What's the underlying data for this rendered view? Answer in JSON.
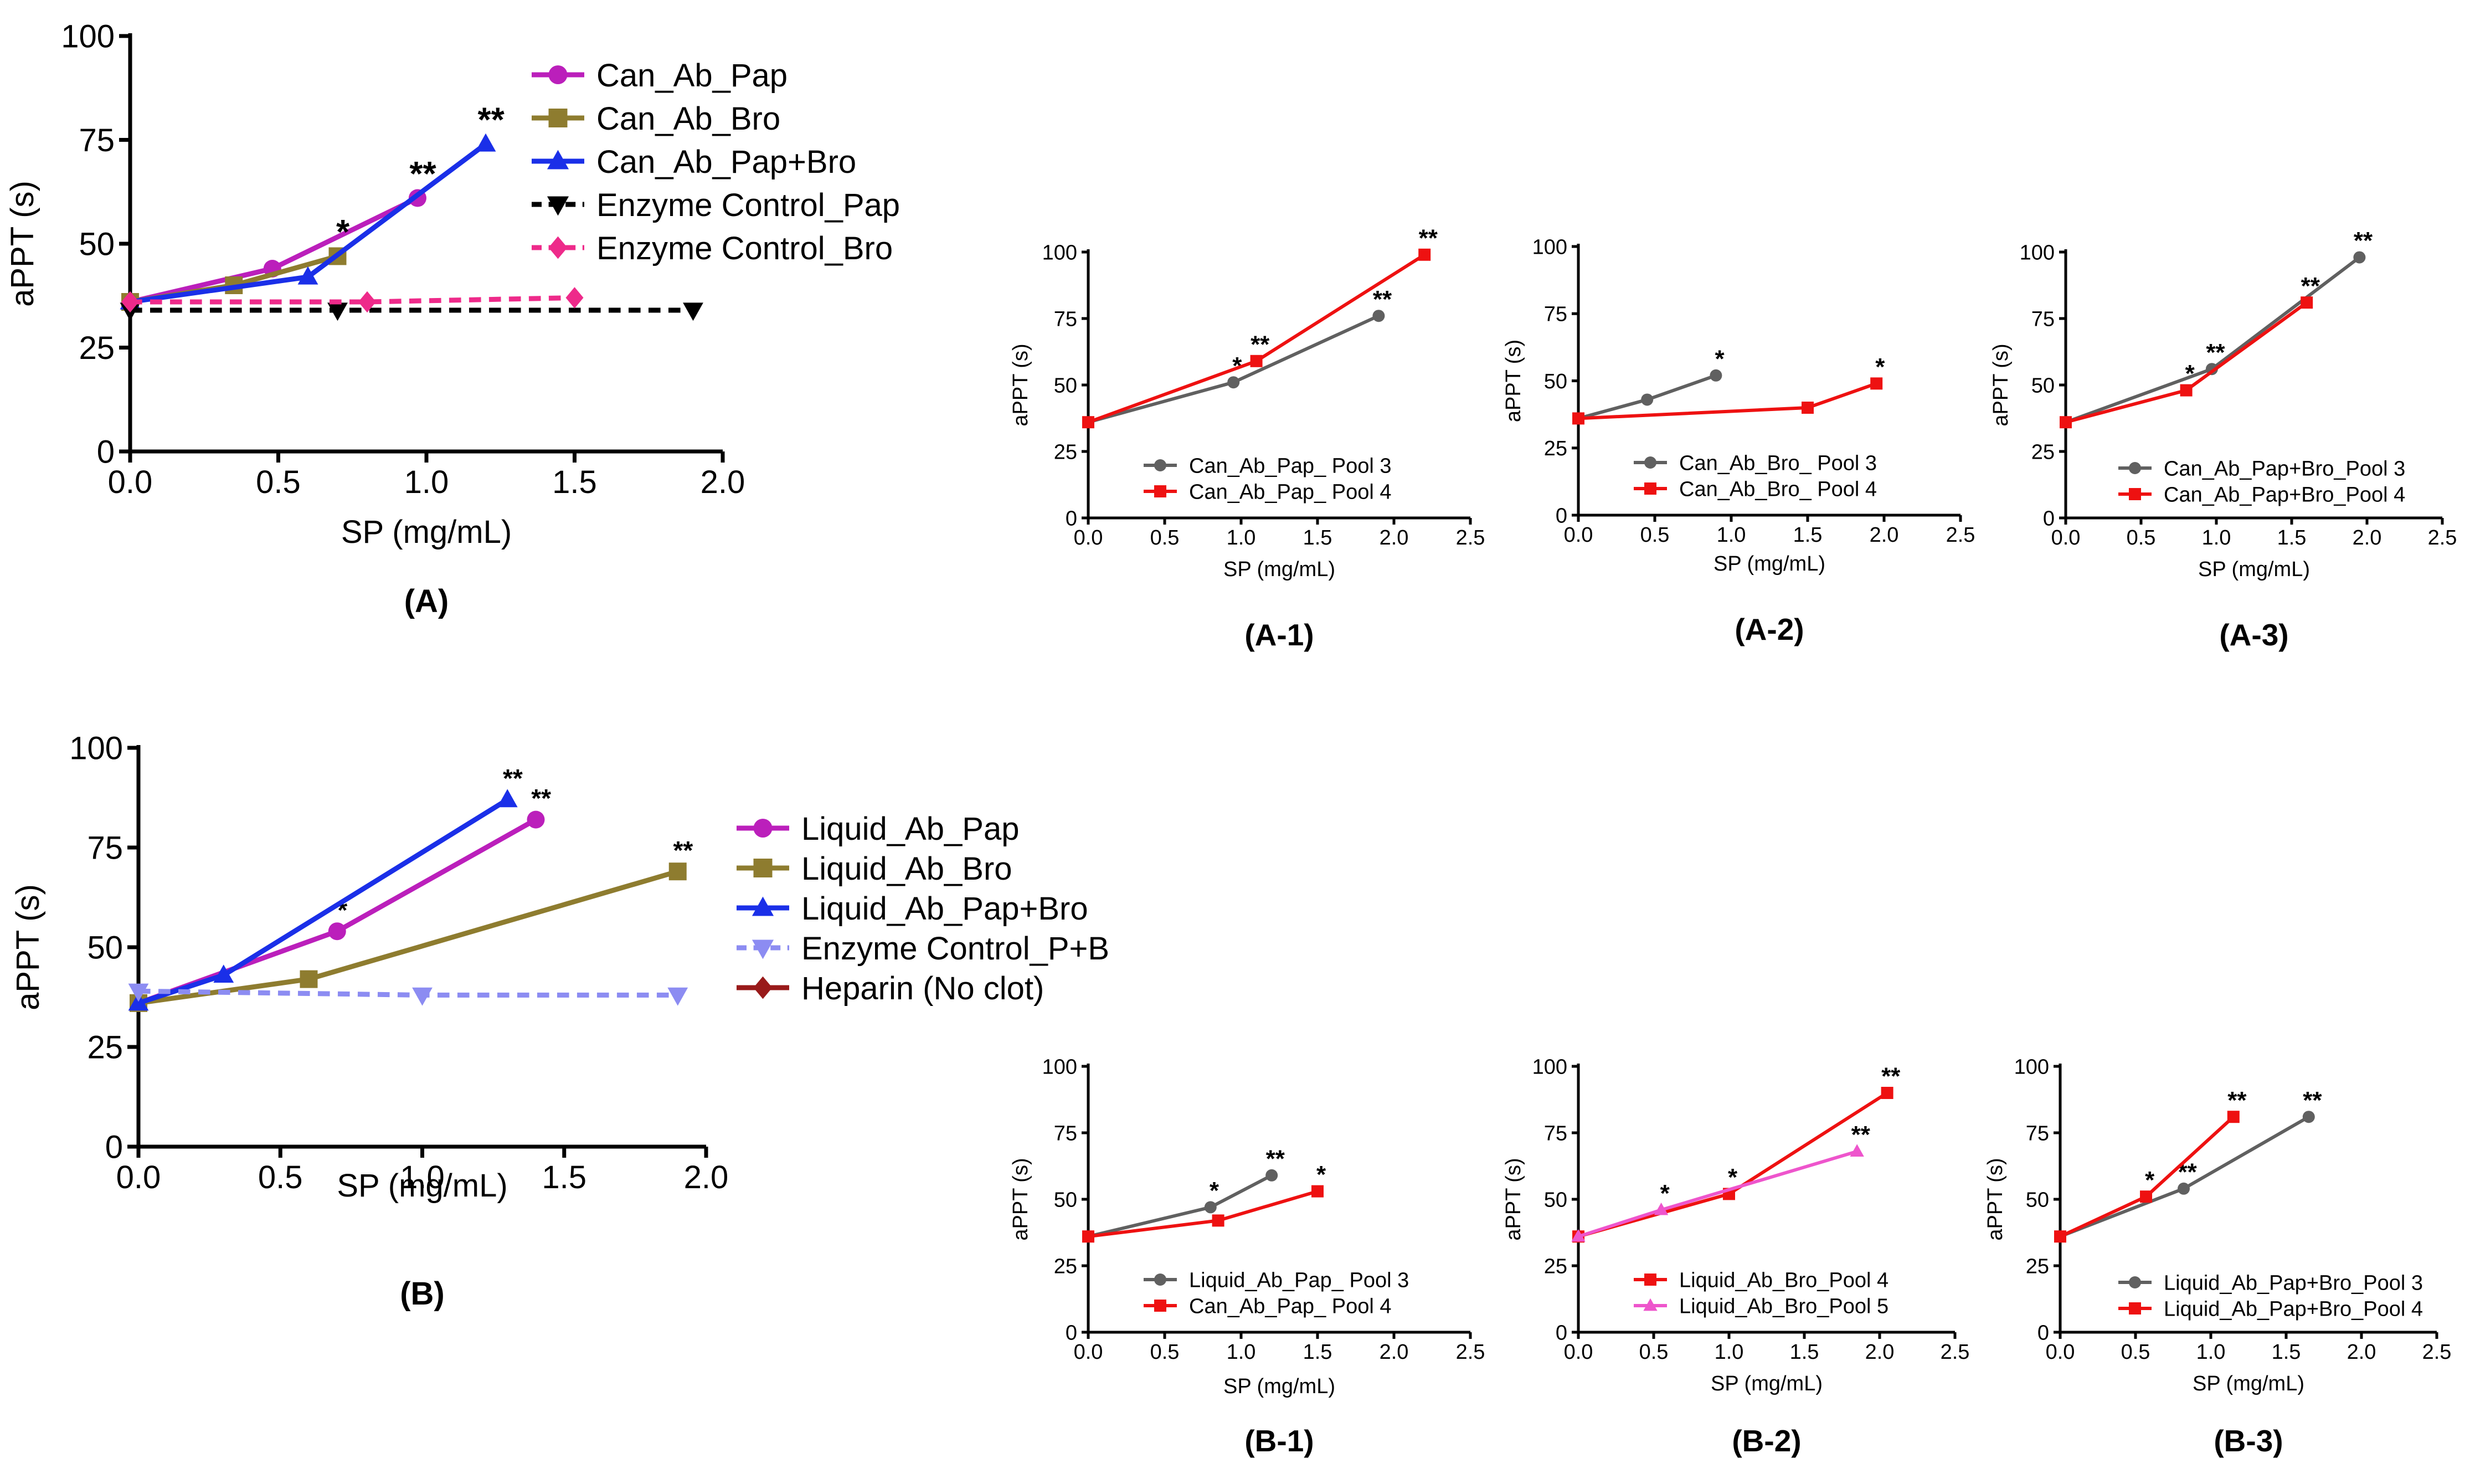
{
  "chart_data": [
    {
      "id": "A",
      "type": "line",
      "panel_label": "(A)",
      "xlabel": "SP (mg/mL)",
      "ylabel": "aPPT (s)",
      "xlim": [
        0,
        2
      ],
      "ylim": [
        0,
        100
      ],
      "xticks": [
        "0.0",
        "0.5",
        "1.0",
        "1.5",
        "2.0"
      ],
      "yticks": [
        "0",
        "25",
        "50",
        "75",
        "100"
      ],
      "series": [
        {
          "name": "Can_Ab_Pap",
          "color": "#bb1fbb",
          "marker": "circle",
          "dashed": false,
          "x": [
            0,
            0.48,
            0.97
          ],
          "y": [
            36,
            44,
            61
          ],
          "labels": [
            "",
            "",
            "**"
          ]
        },
        {
          "name": "Can_Ab_Bro",
          "color": "#8e7c2f",
          "marker": "square",
          "dashed": false,
          "x": [
            0,
            0.35,
            0.7
          ],
          "y": [
            36,
            40,
            47
          ],
          "labels": [
            "",
            "",
            "*"
          ]
        },
        {
          "name": "Can_Ab_Pap+Bro",
          "color": "#1a2fe8",
          "marker": "triangle",
          "dashed": false,
          "x": [
            0,
            0.6,
            1.2
          ],
          "y": [
            36,
            42,
            74
          ],
          "labels": [
            "",
            "",
            "**"
          ]
        },
        {
          "name": "Enzyme Control_Pap",
          "color": "#000000",
          "marker": "triangle-down",
          "dashed": true,
          "x": [
            0,
            0.7,
            1.9
          ],
          "y": [
            34,
            34,
            34
          ],
          "labels": [
            "",
            "",
            ""
          ]
        },
        {
          "name": "Enzyme Control_Bro",
          "color": "#ee2a8a",
          "marker": "diamond",
          "dashed": true,
          "x": [
            0,
            0.8,
            1.5
          ],
          "y": [
            36,
            36,
            37
          ],
          "labels": [
            "",
            "",
            ""
          ]
        }
      ]
    },
    {
      "id": "A-1",
      "type": "line",
      "panel_label": "(A-1)",
      "xlabel": "SP (mg/mL)",
      "ylabel": "aPPT (s)",
      "xlim": [
        0,
        2.5
      ],
      "ylim": [
        0,
        100
      ],
      "xticks": [
        "0.0",
        "0.5",
        "1.0",
        "1.5",
        "2.0",
        "2.5"
      ],
      "yticks": [
        "0",
        "25",
        "50",
        "75",
        "100"
      ],
      "series": [
        {
          "name": "Can_Ab_Pap_ Pool 3",
          "color": "#606060",
          "marker": "circle",
          "dashed": false,
          "x": [
            0,
            0.95,
            1.9
          ],
          "y": [
            36,
            51,
            76
          ],
          "labels": [
            "",
            "*",
            "**"
          ]
        },
        {
          "name": "Can_Ab_Pap_ Pool 4",
          "color": "#ee1111",
          "marker": "square",
          "dashed": false,
          "x": [
            0,
            1.1,
            2.2
          ],
          "y": [
            36,
            59,
            99
          ],
          "labels": [
            "",
            "**",
            "**"
          ]
        }
      ]
    },
    {
      "id": "A-2",
      "type": "line",
      "panel_label": "(A-2)",
      "xlabel": "SP (mg/mL)",
      "ylabel": "aPPT (s)",
      "xlim": [
        0,
        2.5
      ],
      "ylim": [
        0,
        100
      ],
      "xticks": [
        "0.0",
        "0.5",
        "1.0",
        "1.5",
        "2.0",
        "2.5"
      ],
      "yticks": [
        "0",
        "25",
        "50",
        "75",
        "100"
      ],
      "series": [
        {
          "name": "Can_Ab_Bro_ Pool 3",
          "color": "#606060",
          "marker": "circle",
          "dashed": false,
          "x": [
            0,
            0.45,
            0.9
          ],
          "y": [
            36,
            43,
            52
          ],
          "labels": [
            "",
            "",
            "*"
          ]
        },
        {
          "name": "Can_Ab_Bro_ Pool 4",
          "color": "#ee1111",
          "marker": "square",
          "dashed": false,
          "x": [
            0,
            1.5,
            1.95
          ],
          "y": [
            36,
            40,
            49
          ],
          "labels": [
            "",
            "",
            "*"
          ]
        }
      ]
    },
    {
      "id": "A-3",
      "type": "line",
      "panel_label": "(A-3)",
      "xlabel": "SP (mg/mL)",
      "ylabel": "aPPT (s)",
      "xlim": [
        0,
        2.5
      ],
      "ylim": [
        0,
        100
      ],
      "xticks": [
        "0.0",
        "0.5",
        "1.0",
        "1.5",
        "2.0",
        "2.5"
      ],
      "yticks": [
        "0",
        "25",
        "50",
        "75",
        "100"
      ],
      "series": [
        {
          "name": "Can_Ab_Pap+Bro_Pool 3",
          "color": "#606060",
          "marker": "circle",
          "dashed": false,
          "x": [
            0,
            0.97,
            1.95
          ],
          "y": [
            36,
            56,
            98
          ],
          "labels": [
            "",
            "**",
            "**"
          ]
        },
        {
          "name": "Can_Ab_Pap+Bro_Pool 4",
          "color": "#ee1111",
          "marker": "square",
          "dashed": false,
          "x": [
            0,
            0.8,
            1.6
          ],
          "y": [
            36,
            48,
            81
          ],
          "labels": [
            "",
            "*",
            "**"
          ]
        }
      ]
    },
    {
      "id": "B",
      "type": "line",
      "panel_label": "(B)",
      "xlabel": "SP (mg/mL)",
      "ylabel": "aPPT (s)",
      "xlim": [
        0,
        2
      ],
      "ylim": [
        0,
        100
      ],
      "xticks": [
        "0.0",
        "0.5",
        "1.0",
        "1.5",
        "2.0"
      ],
      "yticks": [
        "0",
        "25",
        "50",
        "75",
        "100"
      ],
      "series": [
        {
          "name": "Liquid_Ab_Pap",
          "color": "#bb1fbb",
          "marker": "circle",
          "dashed": false,
          "x": [
            0,
            0.7,
            1.4
          ],
          "y": [
            36,
            54,
            82
          ],
          "labels": [
            "",
            "*",
            "**"
          ]
        },
        {
          "name": "Liquid_Ab_Bro",
          "color": "#8e7c2f",
          "marker": "square",
          "dashed": false,
          "x": [
            0,
            0.6,
            1.9
          ],
          "y": [
            36,
            42,
            69
          ],
          "labels": [
            "",
            "",
            "**"
          ]
        },
        {
          "name": "Liquid_Ab_Pap+Bro",
          "color": "#1a2fe8",
          "marker": "triangle",
          "dashed": false,
          "x": [
            0,
            0.3,
            1.3
          ],
          "y": [
            36,
            43,
            87
          ],
          "labels": [
            "",
            "",
            "**"
          ]
        },
        {
          "name": "Enzyme Control_P+B",
          "color": "#8c8cf2",
          "marker": "triangle-down",
          "dashed": true,
          "x": [
            0,
            1.0,
            1.9
          ],
          "y": [
            39,
            38,
            38
          ],
          "labels": [
            "",
            "",
            ""
          ]
        },
        {
          "name": "Heparin (No clot)",
          "color": "#991a1a",
          "marker": "diamond",
          "dashed": false,
          "x": [],
          "y": [],
          "labels": []
        }
      ]
    },
    {
      "id": "B-1",
      "type": "line",
      "panel_label": "(B-1)",
      "xlabel": "SP (mg/mL)",
      "ylabel": "aPPT (s)",
      "xlim": [
        0,
        2.5
      ],
      "ylim": [
        0,
        100
      ],
      "xticks": [
        "0.0",
        "0.5",
        "1.0",
        "1.5",
        "2.0",
        "2.5"
      ],
      "yticks": [
        "0",
        "25",
        "50",
        "75",
        "100"
      ],
      "series": [
        {
          "name": "Liquid_Ab_Pap_ Pool 3",
          "color": "#606060",
          "marker": "circle",
          "dashed": false,
          "x": [
            0,
            0.8,
            1.2
          ],
          "y": [
            36,
            47,
            59
          ],
          "labels": [
            "",
            "*",
            "**"
          ]
        },
        {
          "name": "Can_Ab_Pap_ Pool 4",
          "color": "#ee1111",
          "marker": "square",
          "dashed": false,
          "x": [
            0,
            0.85,
            1.5
          ],
          "y": [
            36,
            42,
            53
          ],
          "labels": [
            "",
            "",
            "*"
          ]
        }
      ]
    },
    {
      "id": "B-2",
      "type": "line",
      "panel_label": "(B-2)",
      "xlabel": "SP (mg/mL)",
      "ylabel": "aPPT (s)",
      "xlim": [
        0,
        2.5
      ],
      "ylim": [
        0,
        100
      ],
      "xticks": [
        "0.0",
        "0.5",
        "1.0",
        "1.5",
        "2.0",
        "2.5"
      ],
      "yticks": [
        "0",
        "25",
        "50",
        "75",
        "100"
      ],
      "series": [
        {
          "name": "Liquid_Ab_Bro_Pool 4",
          "color": "#ee1111",
          "marker": "square",
          "dashed": false,
          "x": [
            0,
            1.0,
            2.05
          ],
          "y": [
            36,
            52,
            90
          ],
          "labels": [
            "",
            "*",
            "**"
          ]
        },
        {
          "name": "Liquid_Ab_Bro_Pool 5",
          "color": "#ee55cc",
          "marker": "triangle",
          "dashed": false,
          "x": [
            0,
            0.55,
            1.85
          ],
          "y": [
            36,
            46,
            68
          ],
          "labels": [
            "",
            "*",
            "**"
          ]
        }
      ]
    },
    {
      "id": "B-3",
      "type": "line",
      "panel_label": "(B-3)",
      "xlabel": "SP (mg/mL)",
      "ylabel": "aPPT (s)",
      "xlim": [
        0,
        2.5
      ],
      "ylim": [
        0,
        100
      ],
      "xticks": [
        "0.0",
        "0.5",
        "1.0",
        "1.5",
        "2.0",
        "2.5"
      ],
      "yticks": [
        "0",
        "25",
        "50",
        "75",
        "100"
      ],
      "series": [
        {
          "name": "Liquid_Ab_Pap+Bro_Pool 3",
          "color": "#606060",
          "marker": "circle",
          "dashed": false,
          "x": [
            0,
            0.82,
            1.65
          ],
          "y": [
            36,
            54,
            81
          ],
          "labels": [
            "",
            "**",
            "**"
          ]
        },
        {
          "name": "Liquid_Ab_Pap+Bro_Pool 4",
          "color": "#ee1111",
          "marker": "square",
          "dashed": false,
          "x": [
            0,
            0.57,
            1.15
          ],
          "y": [
            36,
            51,
            81
          ],
          "labels": [
            "",
            "*",
            "**"
          ]
        }
      ]
    }
  ]
}
